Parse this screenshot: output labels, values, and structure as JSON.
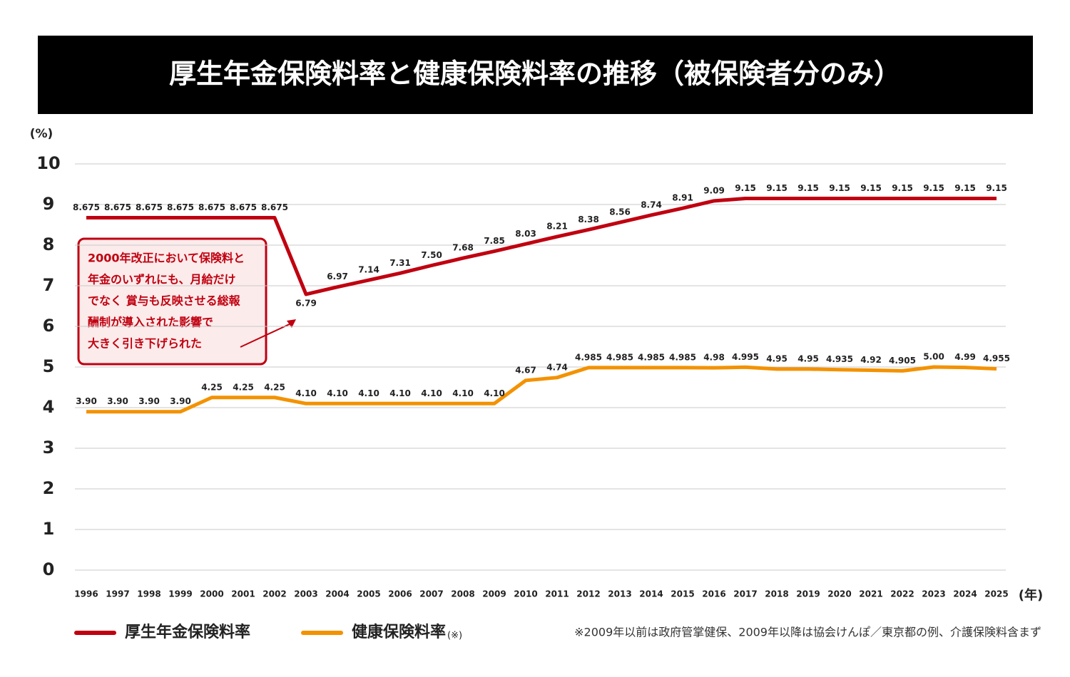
{
  "chart_data": {
    "type": "line",
    "title": "厚生年金保険料率と健康保険料率の推移（被保険者分のみ）",
    "y_unit": "(%)",
    "x_unit": "(年)",
    "categories": [
      "1996",
      "1997",
      "1998",
      "1999",
      "2000",
      "2001",
      "2002",
      "2003",
      "2004",
      "2005",
      "2006",
      "2007",
      "2008",
      "2009",
      "2010",
      "2011",
      "2012",
      "2013",
      "2014",
      "2015",
      "2016",
      "2017",
      "2018",
      "2019",
      "2020",
      "2021",
      "2022",
      "2023",
      "2024",
      "2025"
    ],
    "series": [
      {
        "name": "厚生年金保険料率",
        "color": "#c00010",
        "values": [
          8.675,
          8.675,
          8.675,
          8.675,
          8.675,
          8.675,
          8.675,
          6.79,
          6.97,
          7.14,
          7.31,
          7.5,
          7.68,
          7.85,
          8.03,
          8.21,
          8.38,
          8.56,
          8.74,
          8.91,
          9.09,
          9.15,
          9.15,
          9.15,
          9.15,
          9.15,
          9.15,
          9.15,
          9.15,
          9.15
        ],
        "value_labels": [
          "8.675",
          "8.675",
          "8.675",
          "8.675",
          "8.675",
          "8.675",
          "8.675",
          "6.79",
          "6.97",
          "7.14",
          "7.31",
          "7.50",
          "7.68",
          "7.85",
          "8.03",
          "8.21",
          "8.38",
          "8.56",
          "8.74",
          "8.91",
          "9.09",
          "9.15",
          "9.15",
          "9.15",
          "9.15",
          "9.15",
          "9.15",
          "9.15",
          "9.15",
          "9.15"
        ]
      },
      {
        "name": "健康保険料率",
        "color": "#f39200",
        "values": [
          3.9,
          3.9,
          3.9,
          3.9,
          4.25,
          4.25,
          4.25,
          4.1,
          4.1,
          4.1,
          4.1,
          4.1,
          4.1,
          4.1,
          4.67,
          4.74,
          4.985,
          4.985,
          4.985,
          4.985,
          4.98,
          4.995,
          4.95,
          4.95,
          4.935,
          4.92,
          4.905,
          5,
          4.99,
          4.955
        ],
        "value_labels": [
          "3.90",
          "3.90",
          "3.90",
          "3.90",
          "4.25",
          "4.25",
          "4.25",
          "4.10",
          "4.10",
          "4.10",
          "4.10",
          "4.10",
          "4.10",
          "4.10",
          "4.67",
          "4.74",
          "4.985",
          "4.985",
          "4.985",
          "4.985",
          "4.98",
          "4.995",
          "4.95",
          "4.95",
          "4.935",
          "4.92",
          "4.905",
          "5.00",
          "4.99",
          "4.955"
        ]
      }
    ],
    "legend_note": "(※)",
    "annotation": [
      "2000年改正において保険料と",
      "年金のいずれにも、月給だけ",
      "でなく 賞与も反映させる総報",
      "酬制が導入された影響で",
      "大きく引き下げられた"
    ],
    "footnote": "※2009年以前は政府管掌健保、2009年以降は協会けんぽ／東京都の例、介護保険料含まず",
    "ylim": [
      0,
      10
    ],
    "yticks": [
      0,
      1,
      2,
      3,
      4,
      5,
      6,
      7,
      8,
      9,
      10
    ],
    "grid": true
  }
}
